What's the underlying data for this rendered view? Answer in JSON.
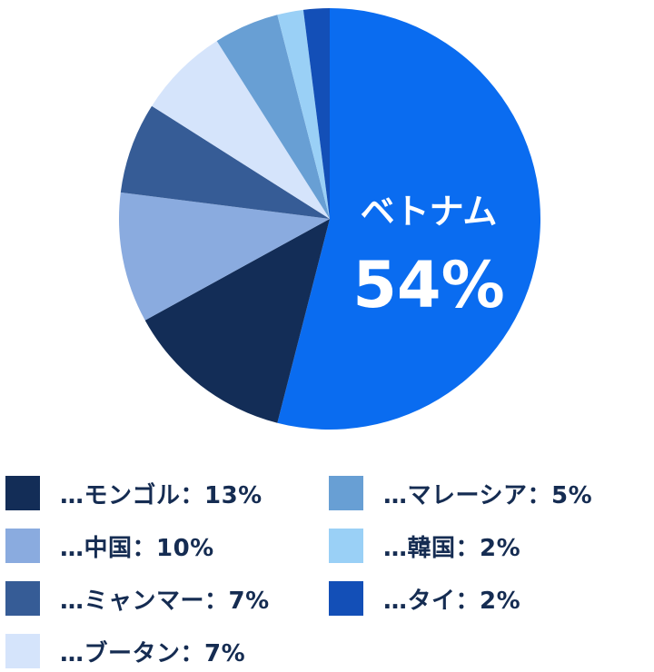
{
  "chart_data": {
    "type": "pie",
    "highlight": {
      "name": "ベトナム",
      "value_label": "54%"
    },
    "slices": [
      {
        "name": "ベトナム",
        "value": 54,
        "color": "#0a6cf0"
      },
      {
        "name": "モンゴル",
        "value": 13,
        "color": "#132d57"
      },
      {
        "name": "中国",
        "value": 10,
        "color": "#8aabdf"
      },
      {
        "name": "ミャンマー",
        "value": 7,
        "color": "#365c96"
      },
      {
        "name": "ブータン",
        "value": 7,
        "color": "#d5e4fb"
      },
      {
        "name": "マレーシア",
        "value": 5,
        "color": "#689fd4"
      },
      {
        "name": "韓国",
        "value": 2,
        "color": "#9ad0f6"
      },
      {
        "name": "タイ",
        "value": 2,
        "color": "#134fb7"
      }
    ]
  },
  "legend": {
    "items": [
      {
        "label": "…モンゴル：13%",
        "color": "#132d57"
      },
      {
        "label": "…中国：10%",
        "color": "#8aabdf"
      },
      {
        "label": "…ミャンマー：7%",
        "color": "#365c96"
      },
      {
        "label": "…ブータン：7%",
        "color": "#d5e4fb"
      },
      {
        "label": "…マレーシア：5%",
        "color": "#689fd4"
      },
      {
        "label": "…韓国：2%",
        "color": "#9ad0f6"
      },
      {
        "label": "…タイ：2%",
        "color": "#134fb7"
      }
    ]
  }
}
